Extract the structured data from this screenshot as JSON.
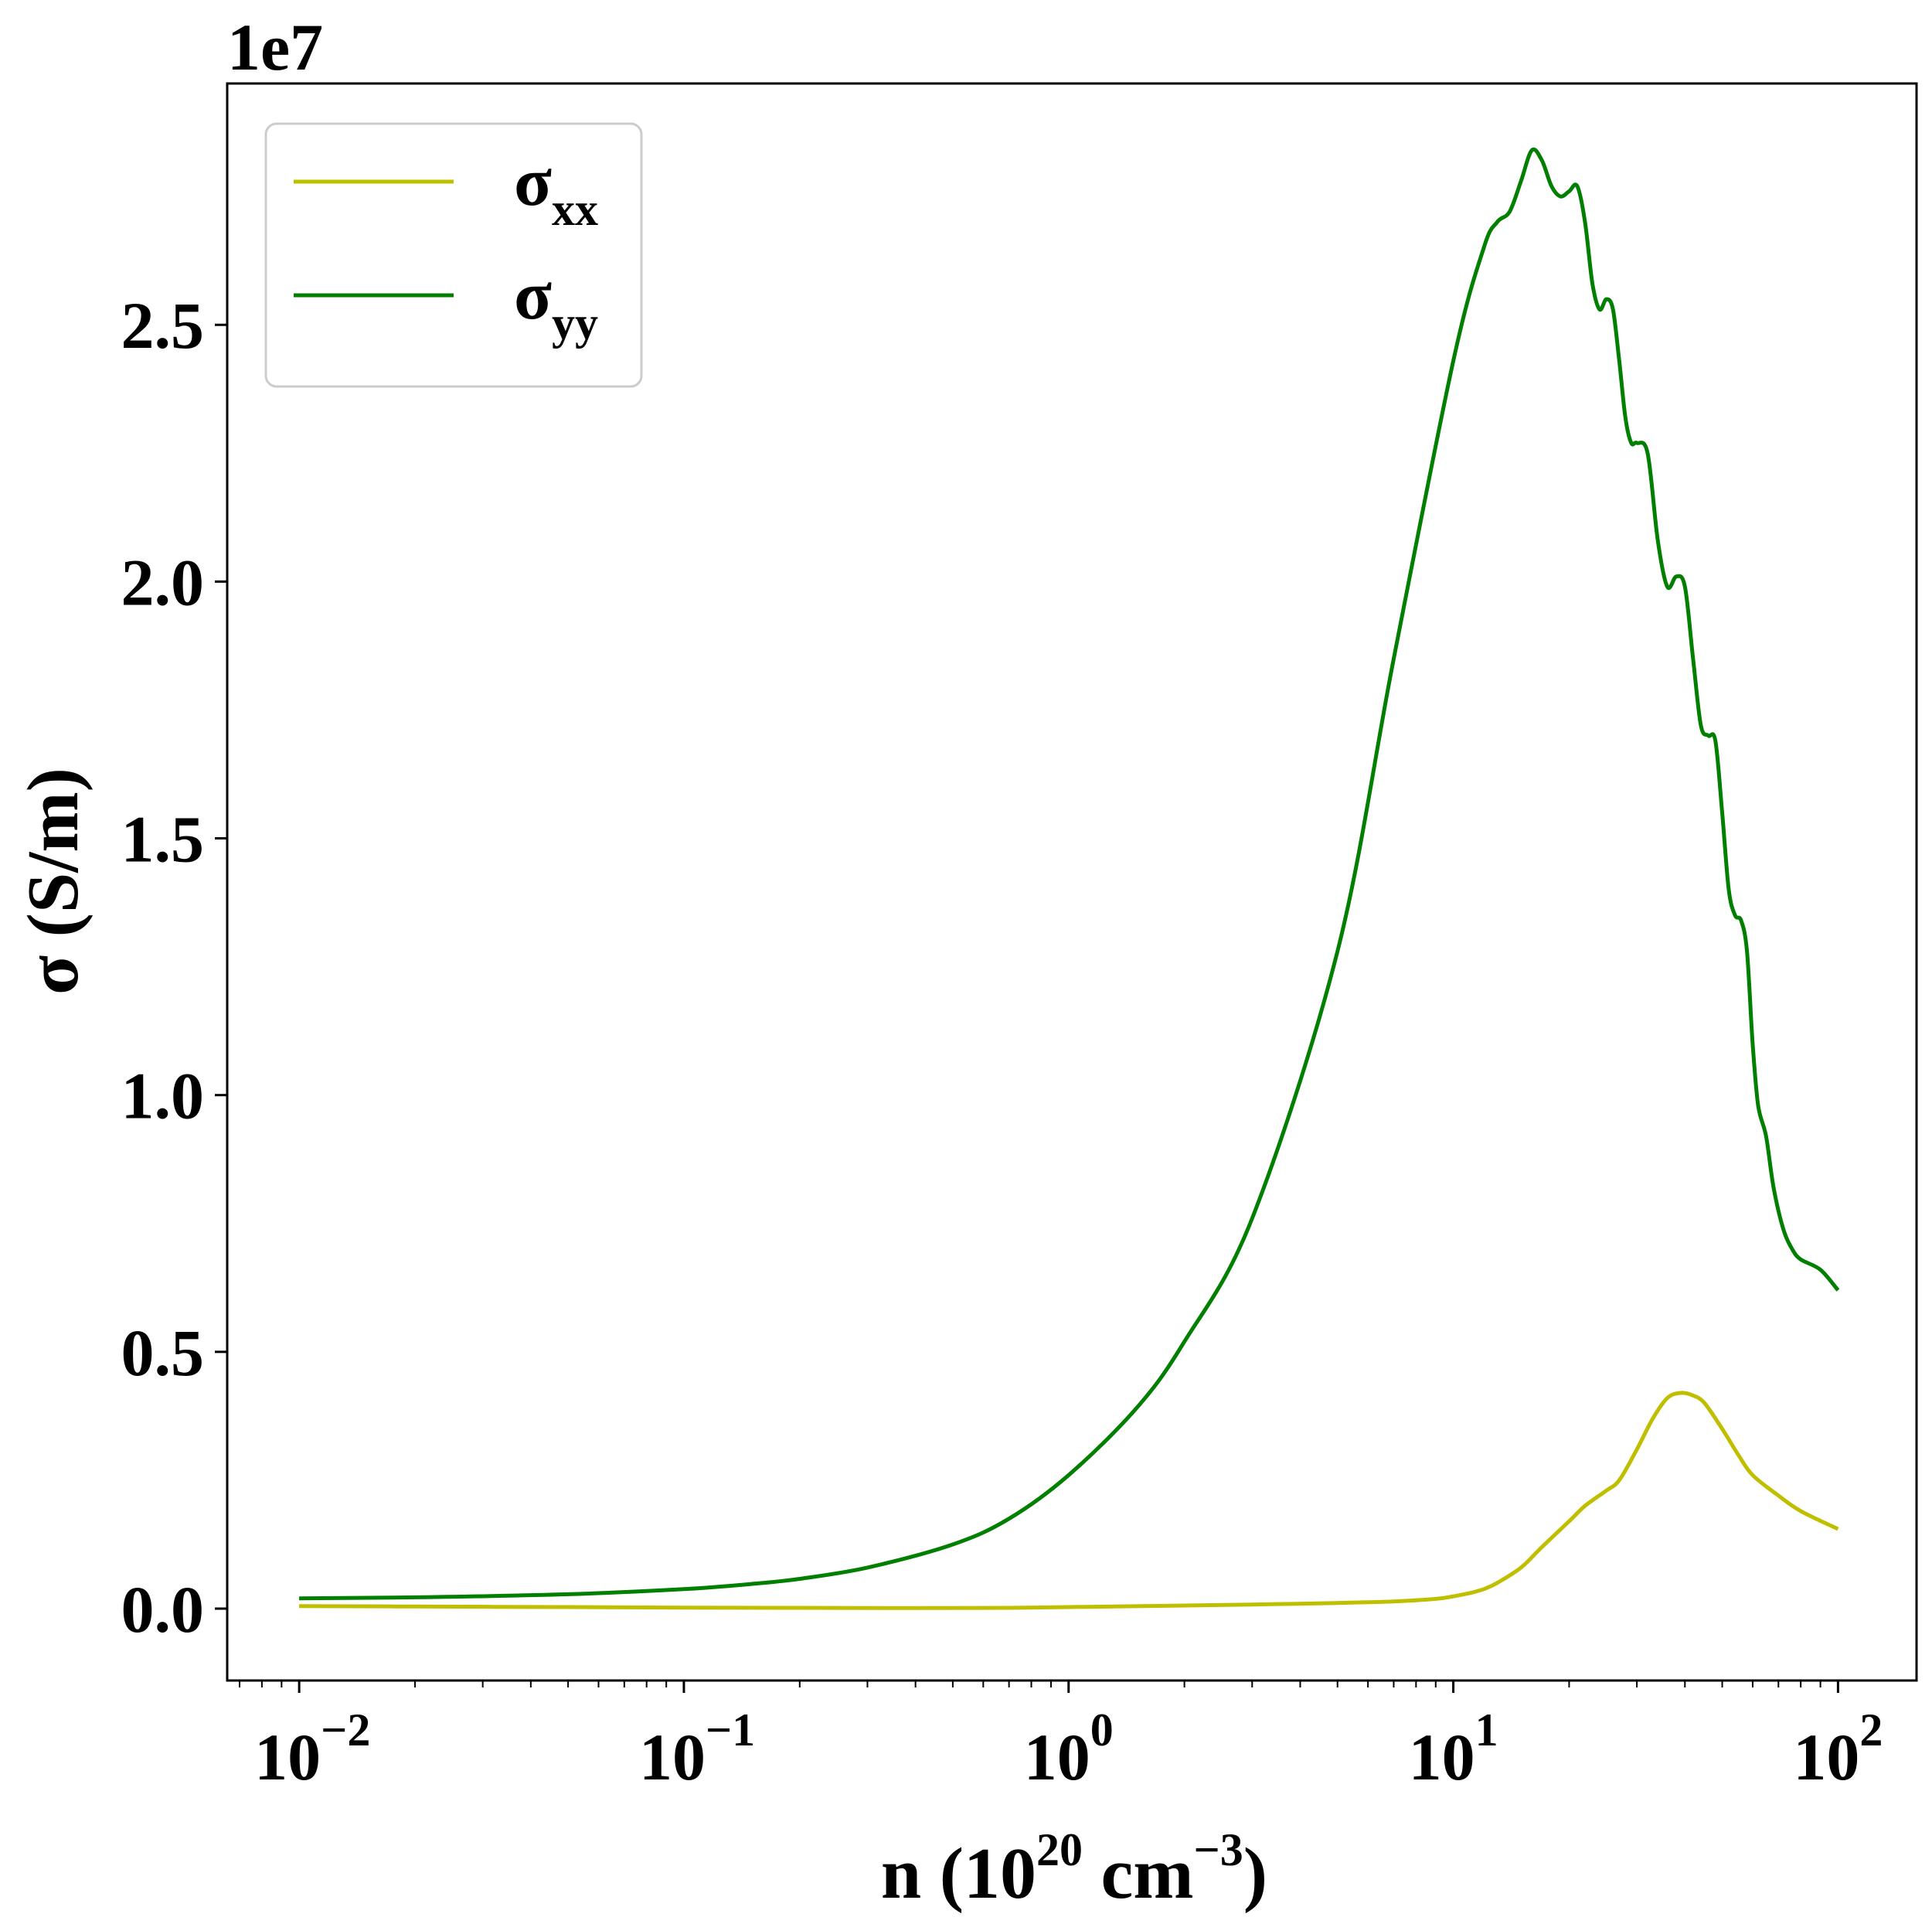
{
  "chart_data": {
    "type": "line",
    "title": "",
    "xlabel": {
      "base": "n (10",
      "exp1": "20",
      "mid": " cm",
      "exp2": "−3",
      "end": ")"
    },
    "ylabel": "σ (S/m)",
    "offset_text": "1e7",
    "xscale": "log",
    "xlim": [
      0.0065,
      160
    ],
    "ylim": [
      -0.14,
      2.97
    ],
    "y_unit_multiplier": 10000000,
    "grid": false,
    "legend_position": "top-left",
    "x_ticks": [
      {
        "value": 0.01,
        "base": "10",
        "exp": "−2"
      },
      {
        "value": 0.1,
        "base": "10",
        "exp": "−1"
      },
      {
        "value": 1,
        "base": "10",
        "exp": "0"
      },
      {
        "value": 10,
        "base": "10",
        "exp": "1"
      },
      {
        "value": 100,
        "base": "10",
        "exp": "2"
      }
    ],
    "y_ticks": [
      {
        "value": 0.0,
        "label": "0.0"
      },
      {
        "value": 0.5,
        "label": "0.5"
      },
      {
        "value": 1.0,
        "label": "1.0"
      },
      {
        "value": 1.5,
        "label": "1.5"
      },
      {
        "value": 2.0,
        "label": "2.0"
      },
      {
        "value": 2.5,
        "label": "2.5"
      }
    ],
    "series": [
      {
        "name": {
          "base": "σ",
          "sub": "xx"
        },
        "color": "#bfbf00",
        "x": [
          0.01,
          0.02,
          0.05,
          0.1,
          0.2,
          0.4,
          0.7,
          1,
          2,
          3,
          5,
          7,
          9,
          10,
          11,
          12,
          13,
          15,
          17,
          20,
          22,
          25,
          27,
          30,
          33,
          36,
          39,
          42,
          45,
          50,
          55,
          60,
          70,
          80,
          100
        ],
        "y": [
          0.005,
          0.004,
          0.003,
          0.002,
          0.0015,
          0.001,
          0.0015,
          0.003,
          0.006,
          0.008,
          0.011,
          0.014,
          0.019,
          0.024,
          0.03,
          0.038,
          0.05,
          0.08,
          0.12,
          0.17,
          0.2,
          0.23,
          0.25,
          0.31,
          0.37,
          0.41,
          0.42,
          0.415,
          0.4,
          0.35,
          0.3,
          0.26,
          0.22,
          0.19,
          0.155
        ]
      },
      {
        "name": {
          "base": "σ",
          "sub": "yy"
        },
        "color": "#007f00",
        "x": [
          0.01,
          0.02,
          0.05,
          0.1,
          0.15,
          0.2,
          0.3,
          0.5,
          0.7,
          1,
          1.5,
          2,
          3,
          5,
          7,
          10,
          12,
          13,
          14,
          15,
          16,
          17,
          18,
          19,
          20,
          21,
          22,
          23,
          24,
          25,
          26,
          27,
          28,
          29,
          30,
          32,
          34,
          36,
          38,
          40,
          42,
          44,
          46,
          48,
          50,
          52,
          54,
          56,
          58,
          60,
          62,
          65,
          68,
          72,
          76,
          80,
          90,
          100
        ],
        "y": [
          0.02,
          0.022,
          0.028,
          0.038,
          0.048,
          0.058,
          0.08,
          0.125,
          0.175,
          0.26,
          0.39,
          0.52,
          0.76,
          1.28,
          1.85,
          2.43,
          2.65,
          2.7,
          2.72,
          2.78,
          2.84,
          2.82,
          2.77,
          2.75,
          2.76,
          2.77,
          2.7,
          2.58,
          2.53,
          2.55,
          2.53,
          2.43,
          2.32,
          2.27,
          2.27,
          2.25,
          2.08,
          1.99,
          2.01,
          1.99,
          1.85,
          1.72,
          1.7,
          1.69,
          1.55,
          1.4,
          1.35,
          1.34,
          1.28,
          1.1,
          0.98,
          0.92,
          0.82,
          0.74,
          0.7,
          0.68,
          0.66,
          0.62
        ]
      }
    ]
  }
}
